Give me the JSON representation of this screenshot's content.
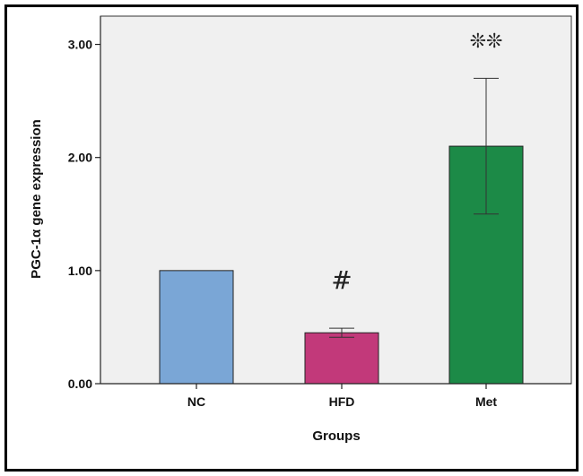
{
  "chart_data": {
    "type": "bar",
    "categories": [
      "NC",
      "HFD",
      "Met"
    ],
    "values": [
      1.0,
      0.45,
      2.1
    ],
    "error_low": [
      1.0,
      0.41,
      1.5
    ],
    "error_high": [
      1.0,
      0.49,
      2.7
    ],
    "bar_colors": [
      "#7aa6d6",
      "#c2397a",
      "#1c8a47"
    ],
    "xlabel": "Groups",
    "ylabel": "PGC-1α gene expression",
    "ylim": [
      0,
      3.25
    ],
    "yticks": [
      0,
      1,
      2,
      3
    ],
    "ytick_labels": [
      "0.00",
      "1.00",
      "2.00",
      "3.00"
    ],
    "annotations": [
      "",
      "#",
      "❊❊"
    ],
    "plot_background": "#f0f0f0",
    "grid": false
  }
}
